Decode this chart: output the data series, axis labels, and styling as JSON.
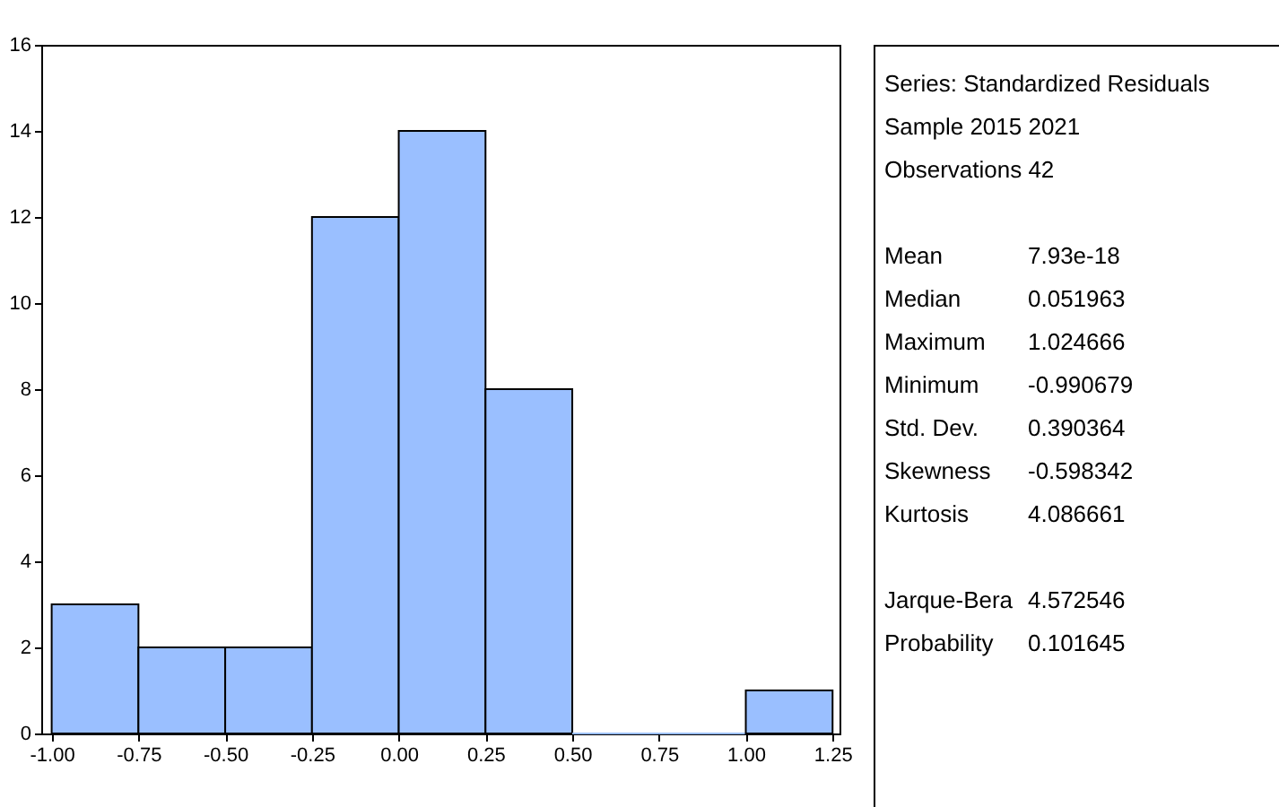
{
  "chart_data": {
    "type": "histogram",
    "bins": [
      -1.0,
      -0.75,
      -0.5,
      -0.25,
      0.0,
      0.25,
      0.5,
      0.75,
      1.0,
      1.25
    ],
    "values": [
      3,
      2,
      2,
      12,
      14,
      8,
      0,
      0,
      1
    ],
    "color": "#9abfff",
    "xlim": [
      -1.03,
      1.27
    ],
    "xticks": [
      {
        "value": -1.0,
        "label": "-1.00"
      },
      {
        "value": -0.75,
        "label": "-0.75"
      },
      {
        "value": -0.5,
        "label": "-0.50"
      },
      {
        "value": -0.25,
        "label": "-0.25"
      },
      {
        "value": 0,
        "label": "0.00"
      },
      {
        "value": 0.25,
        "label": "0.25"
      },
      {
        "value": 0.5,
        "label": "0.50"
      },
      {
        "value": 0.75,
        "label": "0.75"
      },
      {
        "value": 1.0,
        "label": "1.00"
      },
      {
        "value": 1.25,
        "label": "1.25"
      }
    ],
    "ylim": [
      0,
      16
    ],
    "yticks": [
      0,
      2,
      4,
      6,
      8,
      10,
      12,
      14,
      16
    ],
    "grid": false,
    "annotations": [
      "Series: Standardized Residuals",
      "Sample 2015 2021",
      "Observations 42",
      "Mean\t7.93e-18",
      "Median\t0.051963",
      "Maximum\t1.024666",
      "Minimum\t-0.990679",
      "Std. Dev.\t0.390364",
      "Skewness\t-0.598342",
      "Kurtosis\t4.086661",
      "Jarque-Bera\t4.572546",
      "Probability\t0.101645"
    ]
  }
}
